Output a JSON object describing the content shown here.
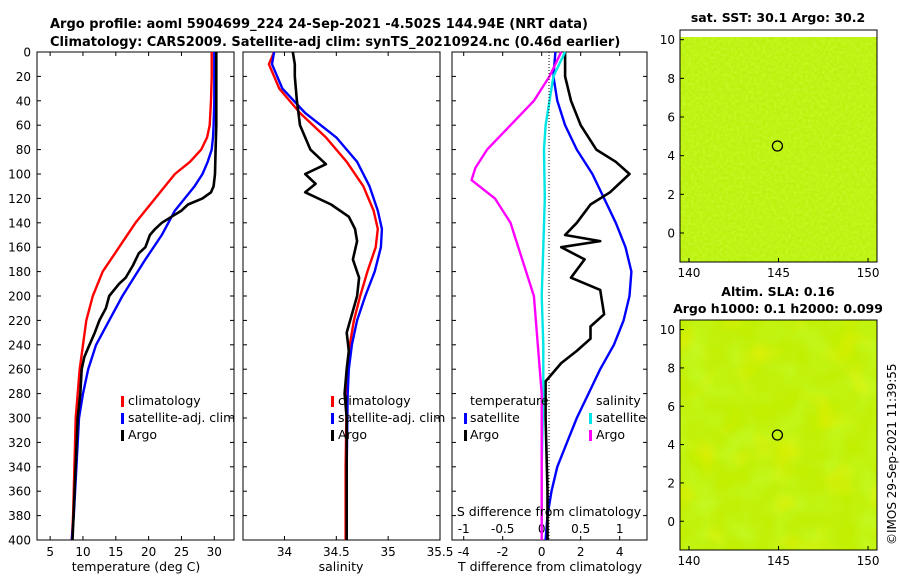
{
  "header": {
    "title_line1": "Argo profile: aoml 5904699_224 24-Sep-2021 -4.502S 144.94E (NRT data)",
    "title_line2": "Climatology: CARS2009. Satellite-adj clim: synTS_20210924.nc (0.46d earlier)"
  },
  "watermark": "©IMOS 29-Sep-2021 11:39:55",
  "colors": {
    "climatology": "#ff0000",
    "satellite": "#0000ff",
    "argo": "#000000",
    "salinity_satellite": "#00e5e5",
    "salinity_argo": "#ff00ff",
    "map_background": "#b8f000"
  },
  "chart_data": [
    {
      "type": "line",
      "id": "temperature",
      "xlabel": "temperature (deg C)",
      "xlim": [
        3,
        33
      ],
      "xticks": [
        5,
        10,
        15,
        20,
        25,
        30
      ],
      "ylim": [
        0,
        400
      ],
      "yticks": [
        0,
        20,
        40,
        60,
        80,
        100,
        120,
        140,
        160,
        180,
        200,
        220,
        240,
        260,
        280,
        300,
        320,
        340,
        360,
        380,
        400
      ],
      "legend": [
        "climatology",
        "satellite-adj. clim",
        "Argo"
      ],
      "series": [
        {
          "name": "climatology",
          "color": "#ff0000",
          "x": [
            29.6,
            29.6,
            29.5,
            29.3,
            28.9,
            28.0,
            26.3,
            24.0,
            21.0,
            18.0,
            15.5,
            13.0,
            11.5,
            10.5,
            10.0,
            9.5,
            9.2,
            8.9,
            8.7,
            8.5,
            8.3
          ],
          "y": [
            0,
            20,
            40,
            60,
            70,
            80,
            90,
            100,
            120,
            140,
            160,
            180,
            200,
            220,
            240,
            260,
            280,
            300,
            340,
            380,
            400
          ]
        },
        {
          "name": "satellite-adj. clim",
          "color": "#0000ff",
          "x": [
            30.0,
            30.0,
            29.9,
            29.8,
            29.6,
            29.0,
            28.2,
            27.0,
            25.5,
            24.0,
            22.0,
            19.5,
            16.0,
            14.0,
            12.0,
            10.8,
            10.0,
            9.4,
            9.0,
            8.6,
            8.3
          ],
          "y": [
            0,
            40,
            60,
            70,
            80,
            90,
            100,
            110,
            120,
            130,
            150,
            170,
            200,
            220,
            240,
            260,
            280,
            300,
            340,
            380,
            400
          ]
        },
        {
          "name": "Argo",
          "color": "#000000",
          "x": [
            30.3,
            30.3,
            30.3,
            30.3,
            30.2,
            30.1,
            29.9,
            29.5,
            28.2,
            26.0,
            25.0,
            23.5,
            22.0,
            21.0,
            20.2,
            19.5,
            18.5,
            17.6,
            16.5,
            15.5,
            14.0,
            13.5,
            12.5,
            11.8,
            11.0,
            10.2,
            9.8,
            9.6,
            9.2,
            8.8,
            8.4
          ],
          "y": [
            0,
            20,
            40,
            60,
            80,
            100,
            110,
            115,
            120,
            125,
            130,
            135,
            140,
            145,
            150,
            160,
            165,
            175,
            185,
            190,
            200,
            210,
            220,
            230,
            240,
            250,
            260,
            280,
            300,
            350,
            400
          ]
        }
      ]
    },
    {
      "type": "line",
      "id": "salinity",
      "xlabel": "salinity",
      "xlim": [
        33.6,
        35.5
      ],
      "xticks": [
        34,
        34.5,
        35,
        35.5
      ],
      "ylim": [
        0,
        400
      ],
      "legend": [
        "climatology",
        "satellite-adj. clim",
        "Argo"
      ],
      "series": [
        {
          "name": "climatology",
          "color": "#ff0000",
          "x": [
            33.9,
            33.85,
            33.95,
            34.15,
            34.4,
            34.6,
            34.76,
            34.86,
            34.9,
            34.88,
            34.8,
            34.73,
            34.67,
            34.63,
            34.61,
            34.6,
            34.59,
            34.59
          ],
          "y": [
            0,
            10,
            30,
            50,
            70,
            90,
            110,
            130,
            145,
            160,
            180,
            200,
            220,
            240,
            260,
            280,
            340,
            400
          ]
        },
        {
          "name": "satellite-adj. clim",
          "color": "#0000ff",
          "x": [
            33.9,
            33.88,
            33.98,
            34.2,
            34.5,
            34.7,
            34.82,
            34.9,
            34.94,
            34.93,
            34.87,
            34.78,
            34.7,
            34.65,
            34.62,
            34.61,
            34.6,
            34.6
          ],
          "y": [
            0,
            10,
            30,
            50,
            70,
            90,
            110,
            130,
            145,
            160,
            180,
            200,
            220,
            240,
            260,
            280,
            340,
            400
          ]
        },
        {
          "name": "Argo",
          "color": "#000000",
          "x": [
            34.08,
            34.1,
            34.1,
            34.12,
            34.15,
            34.25,
            34.4,
            34.2,
            34.3,
            34.2,
            34.45,
            34.62,
            34.68,
            34.7,
            34.66,
            34.72,
            34.7,
            34.65,
            34.6,
            34.62,
            34.6,
            34.58,
            34.6,
            34.6,
            34.6
          ],
          "y": [
            0,
            10,
            20,
            40,
            60,
            80,
            92,
            100,
            108,
            115,
            125,
            135,
            145,
            155,
            170,
            185,
            200,
            215,
            230,
            245,
            260,
            280,
            300,
            350,
            400
          ]
        }
      ]
    },
    {
      "type": "line",
      "id": "difference",
      "xlabel": "T difference from climatology",
      "xlabel_top": "S difference from climatology",
      "xlim": [
        -4.6,
        5.4
      ],
      "xticks": [
        -4,
        -2,
        0,
        2,
        4
      ],
      "sxlim": [
        -1.15,
        1.35
      ],
      "sxticks": [
        -1,
        -0.5,
        0,
        0.5,
        1
      ],
      "sxtick_labels": [
        "-1",
        "-0.5",
        "0",
        "0.5",
        "1"
      ],
      "ylim": [
        0,
        400
      ],
      "legend_titles": [
        "temperature",
        "salinity"
      ],
      "legend": [
        "satellite",
        "Argo",
        "satellite",
        "Argo"
      ],
      "series": [
        {
          "name": "temperature satellite",
          "color": "#0000ff",
          "x": [
            0.7,
            0.6,
            0.8,
            1.2,
            1.8,
            2.6,
            3.2,
            3.8,
            4.3,
            4.6,
            4.5,
            4.2,
            3.7,
            3.0,
            2.4,
            1.8,
            1.3,
            0.8,
            0.5,
            0.3,
            0.2
          ],
          "y": [
            0,
            20,
            40,
            60,
            80,
            100,
            120,
            140,
            160,
            180,
            200,
            220,
            240,
            260,
            280,
            300,
            320,
            340,
            360,
            380,
            400
          ]
        },
        {
          "name": "temperature Argo",
          "color": "#000000",
          "x": [
            1.2,
            1.2,
            1.5,
            2.0,
            2.8,
            3.8,
            4.5,
            3.5,
            2.5,
            1.8,
            1.2,
            3.0,
            1.0,
            2.2,
            1.5,
            3.0,
            3.2,
            2.5,
            2.5,
            1.8,
            1.0,
            0.2,
            0.2,
            0.3,
            0.3
          ],
          "y": [
            0,
            20,
            40,
            60,
            80,
            90,
            100,
            115,
            125,
            140,
            150,
            155,
            160,
            170,
            185,
            195,
            215,
            225,
            235,
            245,
            255,
            270,
            300,
            360,
            400
          ]
        },
        {
          "name": "salinity satellite",
          "color": "#00e5e5",
          "sx": [
            0.3,
            0.15,
            0.1,
            0.05,
            0.03,
            0.04,
            0.02,
            0.0,
            0.02,
            0.02,
            0.0,
            0.0
          ],
          "y": [
            0,
            20,
            40,
            60,
            80,
            120,
            160,
            200,
            240,
            280,
            340,
            400
          ]
        },
        {
          "name": "salinity Argo",
          "color": "#ff00ff",
          "sx": [
            0.25,
            0.1,
            -0.1,
            -0.4,
            -0.7,
            -0.85,
            -0.9,
            -0.6,
            -0.4,
            -0.3,
            -0.1,
            -0.05,
            0.0,
            0.0,
            0.0
          ],
          "y": [
            0,
            20,
            40,
            60,
            80,
            95,
            105,
            120,
            140,
            160,
            200,
            240,
            280,
            340,
            400
          ]
        }
      ]
    },
    {
      "type": "heatmap",
      "id": "sst_map",
      "title": "sat. SST: 30.1 Argo: 30.2",
      "xlim": [
        139.5,
        150.5
      ],
      "ylim": [
        -1.5,
        10.5
      ],
      "xticks": [
        140,
        145,
        150
      ],
      "yticks": [
        0,
        2,
        4,
        6,
        8,
        10
      ],
      "marker": {
        "x": 144.94,
        "y": 4.5
      }
    },
    {
      "type": "heatmap",
      "id": "sla_map",
      "title_line1": "Altim. SLA: 0.16",
      "title_line2": "Argo h1000: 0.1 h2000: 0.099",
      "xlim": [
        139.5,
        150.5
      ],
      "ylim": [
        -1.5,
        10.5
      ],
      "xticks": [
        140,
        145,
        150
      ],
      "yticks": [
        0,
        2,
        4,
        6,
        8,
        10
      ],
      "marker": {
        "x": 144.94,
        "y": 4.5
      }
    }
  ]
}
